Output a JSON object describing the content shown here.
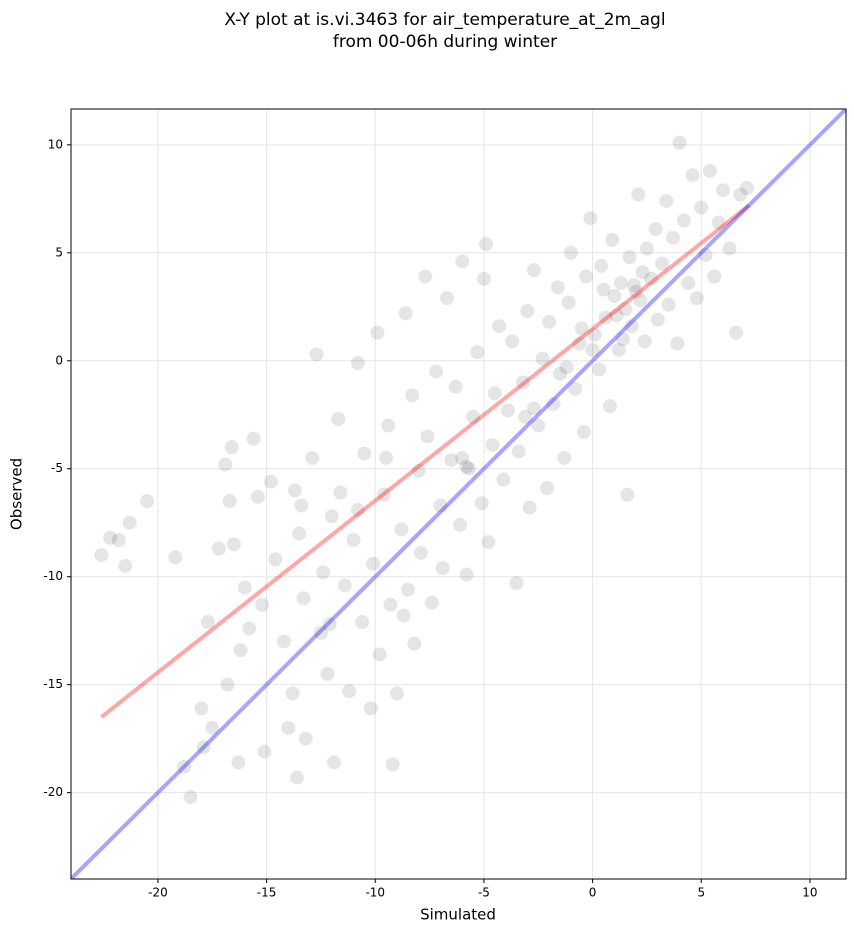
{
  "chart_data": {
    "type": "scatter",
    "title": [
      "X-Y plot at is.vi.3463 for air_temperature_at_2m_agl",
      "from 00-06h during winter"
    ],
    "xlabel": "Simulated",
    "ylabel": "Observed",
    "xlim": [
      -24,
      11.66
    ],
    "ylim": [
      -24,
      11.66
    ],
    "xticks": [
      -20,
      -15,
      -10,
      -5,
      0,
      5,
      10
    ],
    "yticks": [
      -20,
      -15,
      -10,
      -5,
      0,
      5,
      10
    ],
    "grid": true,
    "series": [
      {
        "color": "#000000",
        "x": [
          -22.6,
          -22.2,
          -21.8,
          -21.5,
          -21.3,
          -20.5,
          -19.2,
          -18.8,
          -18.5,
          -18.0,
          -17.9,
          -17.7,
          -17.5,
          -17.2,
          -16.9,
          -16.6,
          -16.7,
          -16.5,
          -16.8,
          -16.3,
          -16.2,
          -16.0,
          -15.8,
          -15.6,
          -15.4,
          -15.2,
          -15.1,
          -14.8,
          -14.6,
          -14.2,
          -14.0,
          -13.8,
          -13.7,
          -13.5,
          -13.3,
          -13.6,
          -13.2,
          -12.9,
          -12.7,
          -12.5,
          -12.4,
          -12.2,
          -12.0,
          -11.9,
          -11.7,
          -11.6,
          -11.4,
          -11.2,
          -11.0,
          -10.8,
          -10.6,
          -10.5,
          -10.2,
          -10.1,
          -9.9,
          -9.8,
          -9.6,
          -9.4,
          -9.3,
          -9.0,
          -9.2,
          -8.8,
          -8.6,
          -8.5,
          -8.3,
          -8.2,
          -8.0,
          -7.9,
          -7.7,
          -7.6,
          -7.4,
          -7.2,
          -7.0,
          -6.9,
          -6.7,
          -6.5,
          -6.3,
          -6.1,
          -6.0,
          -5.8,
          -5.7,
          -5.5,
          -5.3,
          -5.1,
          -5.0,
          -4.8,
          -4.6,
          -4.5,
          -4.3,
          -4.1,
          -4.9,
          -3.9,
          -3.7,
          -3.5,
          -3.4,
          -3.2,
          -3.0,
          -2.9,
          -2.7,
          -2.5,
          -2.3,
          -2.1,
          -2.0,
          -1.8,
          -1.6,
          -1.5,
          -1.3,
          -1.1,
          -1.0,
          -0.8,
          -0.6,
          -0.4,
          -0.3,
          -0.1,
          0.1,
          0.3,
          0.4,
          0.6,
          0.8,
          0.9,
          1.0,
          1.2,
          1.3,
          1.5,
          1.6,
          1.7,
          1.8,
          2.0,
          2.1,
          2.2,
          2.4,
          2.5,
          2.7,
          2.9,
          3.0,
          3.2,
          3.4,
          3.5,
          3.7,
          3.9,
          4.0,
          4.2,
          4.4,
          4.6,
          4.8,
          5.0,
          5.2,
          5.4,
          5.6,
          5.8,
          6.0,
          6.3,
          6.6,
          6.8,
          7.1,
          0.5,
          1.1,
          1.9,
          -0.5,
          2.3,
          -6.0,
          -5.8,
          -2.7,
          -3.1,
          0.0,
          1.4,
          -1.2,
          -9.5,
          -10.8,
          -8.7,
          -13.4,
          -12.1
        ],
        "values": [
          -9.0,
          -8.2,
          -8.3,
          -9.5,
          -7.5,
          -6.5,
          -9.1,
          -18.8,
          -20.2,
          -16.1,
          -17.9,
          -12.1,
          -17.0,
          -8.7,
          -4.8,
          -4.0,
          -6.5,
          -8.5,
          -15.0,
          -18.6,
          -13.4,
          -10.5,
          -12.4,
          -3.6,
          -6.3,
          -11.3,
          -18.1,
          -5.6,
          -9.2,
          -13.0,
          -17.0,
          -15.4,
          -6.0,
          -8.0,
          -11.0,
          -19.3,
          -17.5,
          -4.5,
          0.3,
          -12.6,
          -9.8,
          -14.5,
          -7.2,
          -18.6,
          -2.7,
          -6.1,
          -10.4,
          -15.3,
          -8.3,
          -0.1,
          -12.1,
          -4.3,
          -16.1,
          -9.4,
          1.3,
          -13.6,
          -6.2,
          -3.0,
          -11.3,
          -15.4,
          -18.7,
          -7.8,
          2.2,
          -10.6,
          -1.6,
          -13.1,
          -5.1,
          -8.9,
          3.9,
          -3.5,
          -11.2,
          -0.5,
          -6.7,
          -9.6,
          2.9,
          -4.6,
          -1.2,
          -7.6,
          4.6,
          -9.9,
          -5.0,
          -2.6,
          0.4,
          -6.6,
          3.8,
          -8.4,
          -3.9,
          -1.5,
          1.6,
          -5.5,
          5.4,
          -2.3,
          0.9,
          -10.3,
          -4.2,
          -1.0,
          2.3,
          -6.8,
          4.2,
          -3.0,
          0.1,
          -5.9,
          1.8,
          -2.0,
          3.4,
          -0.6,
          -4.5,
          2.7,
          5.0,
          -1.3,
          0.8,
          -3.3,
          3.9,
          6.6,
          1.2,
          -0.4,
          4.4,
          2.0,
          -2.1,
          5.6,
          3.0,
          0.5,
          3.6,
          2.4,
          -6.2,
          4.8,
          1.6,
          3.2,
          7.7,
          2.8,
          0.9,
          5.2,
          3.8,
          6.1,
          1.9,
          4.5,
          7.4,
          2.6,
          5.7,
          0.8,
          10.1,
          6.5,
          3.6,
          8.6,
          2.9,
          7.1,
          4.9,
          8.8,
          3.9,
          6.4,
          7.9,
          5.2,
          1.3,
          7.7,
          8.0,
          3.3,
          2.1,
          3.5,
          1.5,
          4.1,
          -4.5,
          -4.9,
          -2.2,
          -2.6,
          0.5,
          1.0,
          -0.3,
          -4.5,
          -6.9,
          -11.8,
          -6.7,
          -12.2
        ]
      }
    ],
    "lines": [
      {
        "color": "#ff0000",
        "x": [
          -22.6,
          7.2
        ],
        "values": [
          -16.5,
          7.2
        ]
      },
      {
        "color": "#0000ff",
        "x": [
          -24,
          11.66
        ],
        "values": [
          -24,
          11.66
        ]
      }
    ]
  }
}
